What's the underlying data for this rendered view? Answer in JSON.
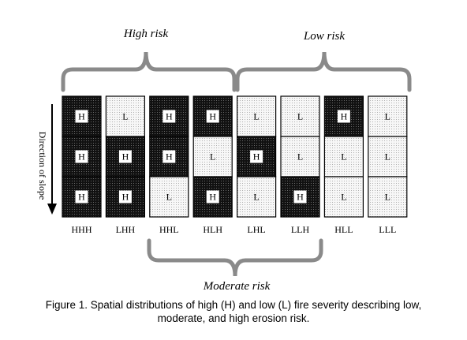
{
  "labels": {
    "high_risk": "High risk",
    "low_risk": "Low risk",
    "moderate_risk": "Moderate risk",
    "direction": "Direction of slope"
  },
  "columns": [
    {
      "name": "HHH",
      "cells": [
        "H",
        "H",
        "H"
      ]
    },
    {
      "name": "LHH",
      "cells": [
        "L",
        "H",
        "H"
      ]
    },
    {
      "name": "HHL",
      "cells": [
        "H",
        "H",
        "L"
      ]
    },
    {
      "name": "HLH",
      "cells": [
        "H",
        "L",
        "H"
      ]
    },
    {
      "name": "LHL",
      "cells": [
        "L",
        "H",
        "L"
      ]
    },
    {
      "name": "LLH",
      "cells": [
        "L",
        "L",
        "H"
      ]
    },
    {
      "name": "HLL",
      "cells": [
        "H",
        "L",
        "L"
      ]
    },
    {
      "name": "LLL",
      "cells": [
        "L",
        "L",
        "L"
      ]
    }
  ],
  "caption": {
    "line1": "Figure 1.  Spatial distributions of high (H) and low (L) fire severity describing low,",
    "line2": "moderate, and high erosion risk."
  },
  "colors": {
    "high": "#1a1a1a",
    "low": "#f2f2f2",
    "brace": "#8a8a8a"
  }
}
